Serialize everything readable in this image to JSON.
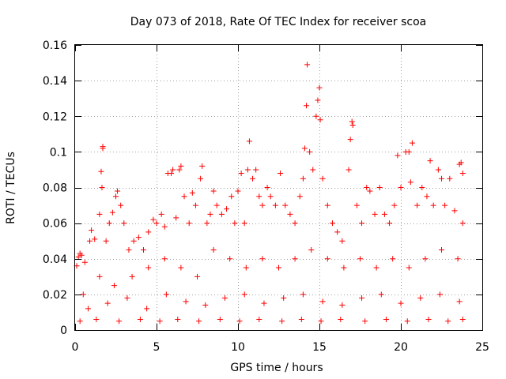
{
  "chart_data": {
    "type": "scatter",
    "title": "Day 073 of 2018, Rate Of TEC Index for receiver scoa",
    "xlabel": "GPS time / hours",
    "ylabel": "ROTI / TECUs",
    "xlim": [
      0,
      25
    ],
    "ylim": [
      0,
      0.16
    ],
    "xticks": [
      "0",
      "5",
      "10",
      "15",
      "20",
      "25"
    ],
    "yticks": [
      "0",
      "0.02",
      "0.04",
      "0.06",
      "0.08",
      "0.1",
      "0.12",
      "0.14",
      "0.16"
    ],
    "grid": true,
    "marker": "plus",
    "color": "#ff0000",
    "series": [
      {
        "points": [
          [
            0.1,
            0.036
          ],
          [
            0.2,
            0.041
          ],
          [
            0.3,
            0.043
          ],
          [
            0.4,
            0.042
          ],
          [
            0.6,
            0.038
          ],
          [
            0.9,
            0.05
          ],
          [
            1.0,
            0.056
          ],
          [
            1.2,
            0.051
          ],
          [
            1.5,
            0.065
          ],
          [
            1.6,
            0.089
          ],
          [
            1.7,
            0.102
          ],
          [
            1.7,
            0.103
          ],
          [
            1.65,
            0.08
          ],
          [
            1.9,
            0.05
          ],
          [
            2.1,
            0.06
          ],
          [
            2.3,
            0.066
          ],
          [
            2.5,
            0.075
          ],
          [
            2.6,
            0.078
          ],
          [
            2.8,
            0.07
          ],
          [
            3.0,
            0.06
          ],
          [
            3.3,
            0.045
          ],
          [
            3.6,
            0.05
          ],
          [
            3.9,
            0.052
          ],
          [
            4.2,
            0.045
          ],
          [
            4.5,
            0.055
          ],
          [
            4.8,
            0.062
          ],
          [
            5.0,
            0.06
          ],
          [
            5.3,
            0.065
          ],
          [
            5.5,
            0.058
          ],
          [
            5.7,
            0.088
          ],
          [
            5.9,
            0.088
          ],
          [
            6.0,
            0.09
          ],
          [
            6.2,
            0.063
          ],
          [
            6.4,
            0.09
          ],
          [
            6.5,
            0.092
          ],
          [
            6.7,
            0.075
          ],
          [
            7.0,
            0.06
          ],
          [
            7.2,
            0.077
          ],
          [
            7.4,
            0.07
          ],
          [
            7.7,
            0.085
          ],
          [
            7.8,
            0.092
          ],
          [
            8.1,
            0.06
          ],
          [
            8.3,
            0.065
          ],
          [
            8.5,
            0.078
          ],
          [
            8.7,
            0.07
          ],
          [
            9.0,
            0.065
          ],
          [
            9.3,
            0.068
          ],
          [
            9.6,
            0.075
          ],
          [
            9.8,
            0.06
          ],
          [
            10.0,
            0.078
          ],
          [
            10.2,
            0.088
          ],
          [
            10.4,
            0.06
          ],
          [
            10.6,
            0.09
          ],
          [
            10.7,
            0.106
          ],
          [
            10.9,
            0.085
          ],
          [
            11.1,
            0.09
          ],
          [
            11.3,
            0.075
          ],
          [
            11.5,
            0.07
          ],
          [
            11.8,
            0.08
          ],
          [
            12.0,
            0.075
          ],
          [
            12.3,
            0.07
          ],
          [
            12.6,
            0.088
          ],
          [
            12.9,
            0.07
          ],
          [
            13.2,
            0.065
          ],
          [
            13.5,
            0.06
          ],
          [
            13.8,
            0.075
          ],
          [
            14.0,
            0.085
          ],
          [
            14.1,
            0.102
          ],
          [
            14.2,
            0.126
          ],
          [
            14.25,
            0.149
          ],
          [
            14.4,
            0.1
          ],
          [
            14.6,
            0.09
          ],
          [
            14.8,
            0.12
          ],
          [
            14.9,
            0.129
          ],
          [
            15.0,
            0.136
          ],
          [
            15.05,
            0.118
          ],
          [
            15.2,
            0.085
          ],
          [
            15.5,
            0.07
          ],
          [
            15.8,
            0.06
          ],
          [
            16.1,
            0.055
          ],
          [
            16.4,
            0.05
          ],
          [
            16.8,
            0.09
          ],
          [
            16.9,
            0.107
          ],
          [
            17.0,
            0.117
          ],
          [
            17.05,
            0.115
          ],
          [
            17.3,
            0.07
          ],
          [
            17.6,
            0.06
          ],
          [
            17.9,
            0.08
          ],
          [
            18.1,
            0.078
          ],
          [
            18.4,
            0.065
          ],
          [
            18.7,
            0.08
          ],
          [
            19.0,
            0.065
          ],
          [
            19.3,
            0.06
          ],
          [
            19.6,
            0.07
          ],
          [
            19.8,
            0.098
          ],
          [
            20.0,
            0.08
          ],
          [
            20.3,
            0.1
          ],
          [
            20.5,
            0.1
          ],
          [
            20.7,
            0.105
          ],
          [
            20.6,
            0.083
          ],
          [
            21.0,
            0.07
          ],
          [
            21.3,
            0.08
          ],
          [
            21.6,
            0.075
          ],
          [
            21.8,
            0.095
          ],
          [
            22.0,
            0.07
          ],
          [
            22.3,
            0.09
          ],
          [
            22.5,
            0.085
          ],
          [
            22.7,
            0.07
          ],
          [
            23.0,
            0.085
          ],
          [
            23.3,
            0.067
          ],
          [
            23.6,
            0.093
          ],
          [
            23.7,
            0.094
          ],
          [
            23.8,
            0.088
          ],
          [
            23.8,
            0.06
          ],
          [
            0.5,
            0.02
          ],
          [
            1.5,
            0.03
          ],
          [
            2.4,
            0.025
          ],
          [
            3.5,
            0.03
          ],
          [
            4.5,
            0.035
          ],
          [
            5.5,
            0.04
          ],
          [
            6.5,
            0.035
          ],
          [
            7.5,
            0.03
          ],
          [
            8.5,
            0.045
          ],
          [
            9.5,
            0.04
          ],
          [
            10.5,
            0.035
          ],
          [
            11.5,
            0.04
          ],
          [
            12.5,
            0.035
          ],
          [
            13.5,
            0.04
          ],
          [
            14.5,
            0.045
          ],
          [
            15.5,
            0.04
          ],
          [
            16.5,
            0.035
          ],
          [
            17.5,
            0.04
          ],
          [
            18.5,
            0.035
          ],
          [
            19.5,
            0.04
          ],
          [
            20.5,
            0.035
          ],
          [
            21.5,
            0.04
          ],
          [
            22.5,
            0.045
          ],
          [
            23.5,
            0.04
          ],
          [
            0.8,
            0.012
          ],
          [
            2.0,
            0.015
          ],
          [
            3.2,
            0.018
          ],
          [
            4.4,
            0.012
          ],
          [
            5.6,
            0.02
          ],
          [
            6.8,
            0.016
          ],
          [
            8.0,
            0.014
          ],
          [
            9.2,
            0.018
          ],
          [
            10.4,
            0.02
          ],
          [
            11.6,
            0.015
          ],
          [
            12.8,
            0.018
          ],
          [
            14.0,
            0.02
          ],
          [
            15.2,
            0.016
          ],
          [
            16.4,
            0.014
          ],
          [
            17.6,
            0.018
          ],
          [
            18.8,
            0.02
          ],
          [
            20.0,
            0.015
          ],
          [
            21.2,
            0.018
          ],
          [
            22.4,
            0.02
          ],
          [
            23.6,
            0.016
          ],
          [
            0.3,
            0.005
          ],
          [
            1.3,
            0.006
          ],
          [
            2.7,
            0.005
          ],
          [
            4.0,
            0.006
          ],
          [
            5.2,
            0.005
          ],
          [
            6.3,
            0.006
          ],
          [
            7.6,
            0.005
          ],
          [
            8.9,
            0.006
          ],
          [
            10.1,
            0.005
          ],
          [
            11.3,
            0.006
          ],
          [
            12.7,
            0.005
          ],
          [
            13.9,
            0.006
          ],
          [
            15.1,
            0.005
          ],
          [
            16.3,
            0.006
          ],
          [
            17.8,
            0.005
          ],
          [
            19.1,
            0.006
          ],
          [
            20.4,
            0.005
          ],
          [
            21.7,
            0.006
          ],
          [
            22.9,
            0.005
          ],
          [
            23.8,
            0.006
          ]
        ]
      }
    ]
  }
}
